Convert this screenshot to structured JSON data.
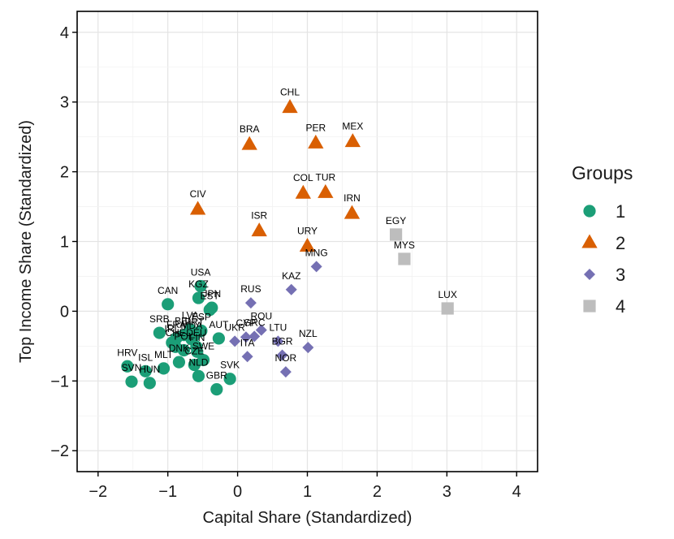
{
  "chart_data": {
    "type": "scatter",
    "xlabel": "Capital Share (Standardized)",
    "ylabel": "Top Income Share (Standardized)",
    "xlim": [
      -2.3,
      4.3
    ],
    "ylim": [
      -2.3,
      4.3
    ],
    "xticks": [
      -2,
      -1,
      0,
      1,
      2,
      3,
      4
    ],
    "yticks": [
      -2,
      -1,
      0,
      1,
      2,
      3,
      4
    ],
    "tick_labels": [
      "−2",
      "−1",
      "0",
      "1",
      "2",
      "3",
      "4"
    ],
    "grid": true,
    "legend": {
      "title": "Groups",
      "position": "right",
      "entries": [
        {
          "group": "1",
          "label": "1",
          "shape": "circle",
          "color": "#1b9e77"
        },
        {
          "group": "2",
          "label": "2",
          "shape": "triangle",
          "color": "#d95f02"
        },
        {
          "group": "3",
          "label": "3",
          "shape": "diamond",
          "color": "#7570b3"
        },
        {
          "group": "4",
          "label": "4",
          "shape": "square",
          "color": "#bdbdbd"
        }
      ]
    },
    "points": [
      {
        "label": "CHL",
        "group": "2",
        "x": 0.75,
        "y": 2.92
      },
      {
        "label": "BRA",
        "group": "2",
        "x": 0.17,
        "y": 2.39
      },
      {
        "label": "PER",
        "group": "2",
        "x": 1.12,
        "y": 2.41
      },
      {
        "label": "MEX",
        "group": "2",
        "x": 1.65,
        "y": 2.43
      },
      {
        "label": "COL",
        "group": "2",
        "x": 0.94,
        "y": 1.69
      },
      {
        "label": "TUR",
        "group": "2",
        "x": 1.26,
        "y": 1.7
      },
      {
        "label": "CIV",
        "group": "2",
        "x": -0.57,
        "y": 1.46
      },
      {
        "label": "IRN",
        "group": "2",
        "x": 1.64,
        "y": 1.4
      },
      {
        "label": "ISR",
        "group": "2",
        "x": 0.31,
        "y": 1.15
      },
      {
        "label": "URY",
        "group": "2",
        "x": 1.0,
        "y": 0.93
      },
      {
        "label": "EGY",
        "group": "4",
        "x": 2.27,
        "y": 1.1
      },
      {
        "label": "MYS",
        "group": "4",
        "x": 2.39,
        "y": 0.75
      },
      {
        "label": "LUX",
        "group": "4",
        "x": 3.01,
        "y": 0.04
      },
      {
        "label": "MNG",
        "group": "3",
        "x": 1.13,
        "y": 0.64
      },
      {
        "label": "KAZ",
        "group": "3",
        "x": 0.77,
        "y": 0.31
      },
      {
        "label": "RUS",
        "group": "3",
        "x": 0.19,
        "y": 0.12
      },
      {
        "label": "CYP",
        "group": "3",
        "x": 0.12,
        "y": -0.37
      },
      {
        "label": "ROU",
        "group": "3",
        "x": 0.34,
        "y": -0.27
      },
      {
        "label": "UKR",
        "group": "3",
        "x": -0.04,
        "y": -0.43
      },
      {
        "label": "GRC",
        "group": "3",
        "x": 0.24,
        "y": -0.36
      },
      {
        "label": "LTU",
        "group": "3",
        "x": 0.58,
        "y": -0.43
      },
      {
        "label": "NZL",
        "group": "3",
        "x": 1.01,
        "y": -0.52
      },
      {
        "label": "BGR",
        "group": "3",
        "x": 0.64,
        "y": -0.63
      },
      {
        "label": "ITA",
        "group": "3",
        "x": 0.14,
        "y": -0.65
      },
      {
        "label": "NOR",
        "group": "3",
        "x": 0.69,
        "y": -0.87
      },
      {
        "label": "USA",
        "group": "1",
        "x": -0.53,
        "y": 0.36
      },
      {
        "label": "KGZ",
        "group": "1",
        "x": -0.56,
        "y": 0.19
      },
      {
        "label": "JPN",
        "group": "1",
        "x": -0.37,
        "y": 0.05
      },
      {
        "label": "EST",
        "group": "1",
        "x": -0.4,
        "y": 0.02
      },
      {
        "label": "CAN",
        "group": "1",
        "x": -1.0,
        "y": 0.1
      },
      {
        "label": "SRB",
        "group": "1",
        "x": -1.12,
        "y": -0.31
      },
      {
        "label": "LVA",
        "group": "1",
        "x": -0.68,
        "y": -0.26
      },
      {
        "label": "ESP",
        "group": "1",
        "x": -0.52,
        "y": -0.28
      },
      {
        "label": "FRA",
        "group": "1",
        "x": -0.88,
        "y": -0.39
      },
      {
        "label": "BEL",
        "group": "1",
        "x": -0.77,
        "y": -0.34
      },
      {
        "label": "PRT",
        "group": "1",
        "x": -0.62,
        "y": -0.35
      },
      {
        "label": "MDA",
        "group": "1",
        "x": -0.66,
        "y": -0.4
      },
      {
        "label": "AUT",
        "group": "1",
        "x": -0.27,
        "y": -0.39
      },
      {
        "label": "IRL",
        "group": "1",
        "x": -0.94,
        "y": -0.45
      },
      {
        "label": "DEU",
        "group": "1",
        "x": -0.59,
        "y": -0.51
      },
      {
        "label": "CHE",
        "group": "1",
        "x": -0.89,
        "y": -0.51
      },
      {
        "label": "POL",
        "group": "1",
        "x": -0.77,
        "y": -0.56
      },
      {
        "label": "FIN",
        "group": "1",
        "x": -0.58,
        "y": -0.58
      },
      {
        "label": "DNK",
        "group": "1",
        "x": -0.84,
        "y": -0.73
      },
      {
        "label": "SWE",
        "group": "1",
        "x": -0.49,
        "y": -0.7
      },
      {
        "label": "CZE",
        "group": "1",
        "x": -0.62,
        "y": -0.77
      },
      {
        "label": "MLT",
        "group": "1",
        "x": -1.06,
        "y": -0.82
      },
      {
        "label": "HRV",
        "group": "1",
        "x": -1.58,
        "y": -0.79
      },
      {
        "label": "ISL",
        "group": "1",
        "x": -1.32,
        "y": -0.86
      },
      {
        "label": "SVN",
        "group": "1",
        "x": -1.52,
        "y": -1.01
      },
      {
        "label": "HUN",
        "group": "1",
        "x": -1.26,
        "y": -1.03
      },
      {
        "label": "NLD",
        "group": "1",
        "x": -0.56,
        "y": -0.93
      },
      {
        "label": "SVK",
        "group": "1",
        "x": -0.11,
        "y": -0.97
      },
      {
        "label": "GBR",
        "group": "1",
        "x": -0.3,
        "y": -1.12
      }
    ]
  }
}
